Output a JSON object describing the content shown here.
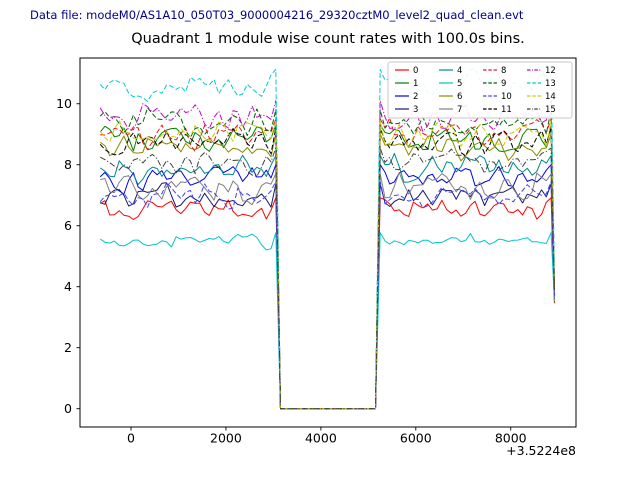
{
  "header": {
    "datafile": "Data file: modeM0/AS1A10_050T03_9000004216_29320cztM0_level2_quad_clean.evt"
  },
  "chart_data": {
    "type": "line",
    "title": "Quadrant 1 module wise count rates with 100.0s bins.",
    "xlabel": "",
    "ylabel": "",
    "x_offset_label": "+3.5224e8",
    "xlim": [
      -1075,
      9375
    ],
    "ylim": [
      -0.6,
      11.5
    ],
    "xticks": [
      0,
      2000,
      4000,
      6000,
      8000
    ],
    "yticks": [
      0,
      2,
      4,
      6,
      8,
      10
    ],
    "grid": false,
    "x_bin_seconds": 100,
    "x_start": -650,
    "x_end": 8850,
    "x_final": 8920,
    "gap": {
      "start": 3150,
      "end": 5150,
      "value": 0
    },
    "end_drop": {
      "base": 3.4,
      "slope": 0.17
    },
    "legend": {
      "position": "upper right",
      "columns": 4
    },
    "series": [
      {
        "label": "0",
        "color": "#ff0000",
        "style": "solid",
        "mean": 6.5,
        "amp": 0.28
      },
      {
        "label": "1",
        "color": "#008000",
        "style": "solid",
        "mean": 8.85,
        "amp": 0.3
      },
      {
        "label": "2",
        "color": "#0000ee",
        "style": "solid",
        "mean": 7.55,
        "amp": 0.3
      },
      {
        "label": "3",
        "color": "#191970",
        "style": "solid",
        "mean": 6.95,
        "amp": 0.28
      },
      {
        "label": "4",
        "color": "#008b8b",
        "style": "solid",
        "mean": 7.85,
        "amp": 0.3
      },
      {
        "label": "5",
        "color": "#00c5cd",
        "style": "solid",
        "mean": 5.5,
        "amp": 0.18
      },
      {
        "label": "6",
        "color": "#8b8b00",
        "style": "solid",
        "mean": 8.55,
        "amp": 0.3
      },
      {
        "label": "7",
        "color": "#808080",
        "style": "solid",
        "mean": 7.25,
        "amp": 0.3
      },
      {
        "label": "8",
        "color": "#e31a1c",
        "style": "dashed",
        "mean": 9.0,
        "amp": 0.33
      },
      {
        "label": "9",
        "color": "#006400",
        "style": "dashed",
        "mean": 9.35,
        "amp": 0.3
      },
      {
        "label": "10",
        "color": "#4040ff",
        "style": "dashed",
        "mean": 7.0,
        "amp": 0.3
      },
      {
        "label": "11",
        "color": "#000000",
        "style": "dashed",
        "mean": 8.75,
        "amp": 0.3
      },
      {
        "label": "12",
        "color": "#cc00cc",
        "style": "dashdot",
        "mean": 9.6,
        "amp": 0.33
      },
      {
        "label": "13",
        "color": "#00cccc",
        "style": "dashed",
        "mean": 10.6,
        "amp": 0.35
      },
      {
        "label": "14",
        "color": "#cccc00",
        "style": "dashed",
        "mean": 9.0,
        "amp": 0.3
      },
      {
        "label": "15",
        "color": "#404040",
        "style": "dashdot",
        "mean": 8.1,
        "amp": 0.3
      }
    ]
  }
}
